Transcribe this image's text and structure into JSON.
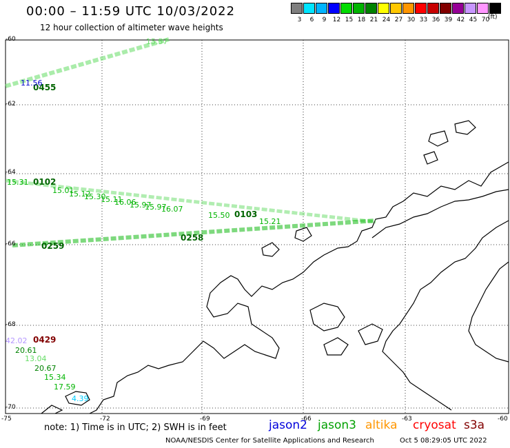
{
  "header": {
    "title": "00:00 – 11:59 UTC 10/03/2022",
    "subtitle": "12 hour collection of altimeter wave heights"
  },
  "legend": {
    "unit": "(ft)",
    "bins": [
      {
        "label": "3",
        "color": "#7f7f7f"
      },
      {
        "label": "6",
        "color": "#00e5ff"
      },
      {
        "label": "9",
        "color": "#00b4ff"
      },
      {
        "label": "12",
        "color": "#0000ff"
      },
      {
        "label": "15",
        "color": "#00dc00"
      },
      {
        "label": "18",
        "color": "#00b400"
      },
      {
        "label": "21",
        "color": "#008200"
      },
      {
        "label": "24",
        "color": "#ffff00"
      },
      {
        "label": "27",
        "color": "#ffc800"
      },
      {
        "label": "30",
        "color": "#ff9600"
      },
      {
        "label": "33",
        "color": "#ff0000"
      },
      {
        "label": "36",
        "color": "#c80000"
      },
      {
        "label": "39",
        "color": "#820000"
      },
      {
        "label": "42",
        "color": "#960096"
      },
      {
        "label": "45",
        "color": "#c896ff"
      },
      {
        "label": "70",
        "color": "#ff96ff"
      },
      {
        "label": "",
        "color": "#000000"
      }
    ]
  },
  "axes": {
    "lat_labels": [
      "-60",
      "-62",
      "-64",
      "-66",
      "-68",
      "-70"
    ],
    "lon_labels": [
      "-75",
      "-72",
      "-69",
      "-66",
      "-63",
      "-60"
    ]
  },
  "tracks": [
    {
      "time": "0455",
      "color": "#006400"
    },
    {
      "time": "0102",
      "color": "#006400"
    },
    {
      "time": "0103",
      "color": "#006400"
    },
    {
      "time": "0258",
      "color": "#006400"
    },
    {
      "time": "0259",
      "color": "#006400"
    },
    {
      "time": "0429",
      "color": "#820000"
    }
  ],
  "heights": [
    {
      "v": "15.57",
      "c": "#66dd66"
    },
    {
      "v": "11.56",
      "c": "#0000cc"
    },
    {
      "v": "15.31",
      "c": "#00b400"
    },
    {
      "v": "15.01",
      "c": "#00b400"
    },
    {
      "v": "15.12",
      "c": "#00b400"
    },
    {
      "v": "15.30",
      "c": "#00b400"
    },
    {
      "v": "15.11",
      "c": "#00b400"
    },
    {
      "v": "16.06",
      "c": "#00b400"
    },
    {
      "v": "15.97",
      "c": "#00b400"
    },
    {
      "v": "15.97",
      "c": "#00b400"
    },
    {
      "v": "16.07",
      "c": "#00b400"
    },
    {
      "v": "15.50",
      "c": "#00b400"
    },
    {
      "v": "15.21",
      "c": "#00b400"
    },
    {
      "v": "42.02",
      "c": "#b496ff"
    },
    {
      "v": "20.61",
      "c": "#008200"
    },
    {
      "v": "13.04",
      "c": "#66dd66"
    },
    {
      "v": "20.67",
      "c": "#008200"
    },
    {
      "v": "15.34",
      "c": "#00b400"
    },
    {
      "v": "17.59",
      "c": "#00b400"
    },
    {
      "v": "4.39",
      "c": "#00ccff"
    }
  ],
  "footer": {
    "note": "note: 1) Time is in UTC; 2) SWH is in feet",
    "satellites": [
      {
        "name": "jason2",
        "color": "#0000dc"
      },
      {
        "name": "jason3",
        "color": "#00a000"
      },
      {
        "name": "altika",
        "color": "#ff9600"
      },
      {
        "name": "cryosat",
        "color": "#ff0000"
      },
      {
        "name": "s3a",
        "color": "#820000"
      }
    ],
    "credit": "NOAA/NESDIS Center for Satellite Applications and Research",
    "timestamp": "Oct  5 08:29:05 UTC 2022"
  }
}
